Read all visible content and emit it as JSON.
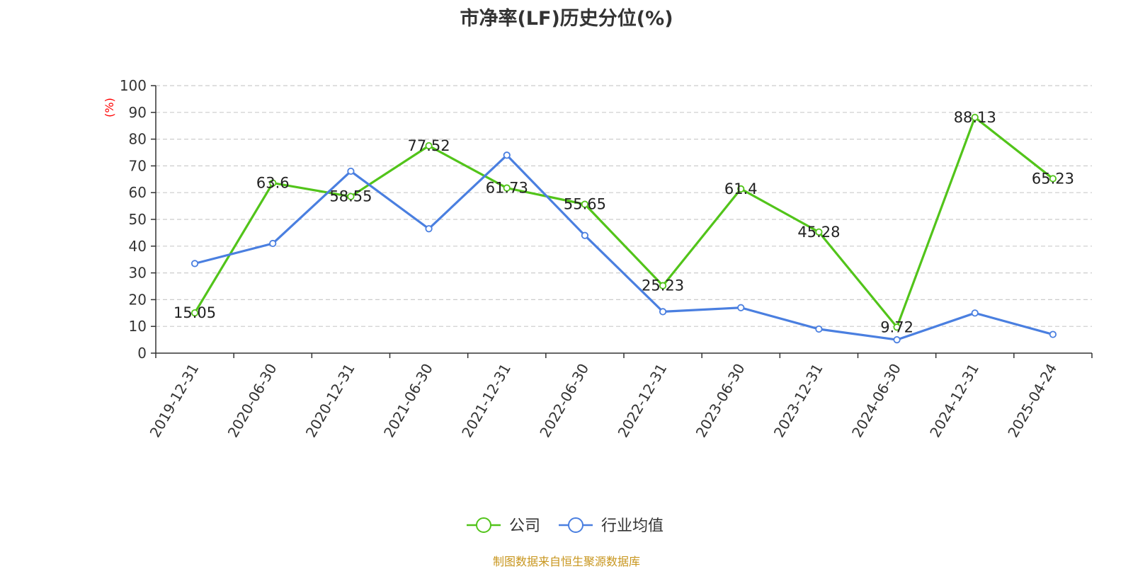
{
  "chart_data": {
    "type": "line",
    "title": "市净率(LF)历史分位(%)",
    "y_unit": "(%)",
    "ylim": [
      0,
      100
    ],
    "y_ticks": [
      0,
      10,
      20,
      30,
      40,
      50,
      60,
      70,
      80,
      90,
      100
    ],
    "grid": true,
    "legend_position": "bottom-center",
    "categories": [
      "2019-12-31",
      "2020-06-30",
      "2020-12-31",
      "2021-06-30",
      "2021-12-31",
      "2022-06-30",
      "2022-12-31",
      "2023-06-30",
      "2023-12-31",
      "2024-06-30",
      "2024-12-31",
      "2025-04-24"
    ],
    "series": [
      {
        "name": "公司",
        "color": "#52c41a",
        "values": [
          15.05,
          63.6,
          58.55,
          77.52,
          61.73,
          55.65,
          25.23,
          61.4,
          45.28,
          9.72,
          88.13,
          65.23
        ],
        "data_labels": [
          "15.05",
          "63.6",
          "58.55",
          "77.52",
          "61.73",
          "55.65",
          "25.23",
          "61.4",
          "45.28",
          "9.72",
          "88.13",
          "65.23"
        ]
      },
      {
        "name": "行业均值",
        "color": "#4a7fe0",
        "values": [
          33.5,
          41,
          68,
          46.5,
          74,
          44,
          15.5,
          17,
          9,
          5,
          15,
          7
        ]
      }
    ]
  },
  "source": "制图数据来自恒生聚源数据库"
}
